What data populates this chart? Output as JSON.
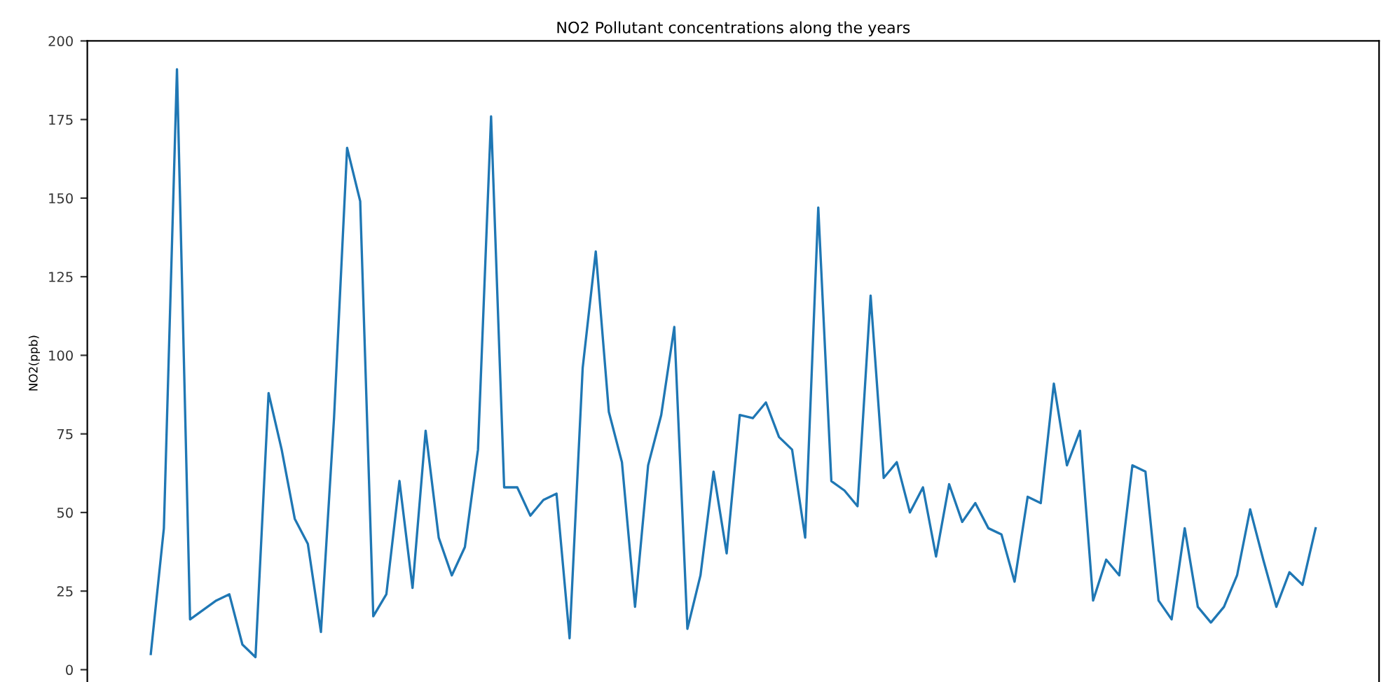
{
  "chart_data": {
    "type": "line",
    "title": "NO2 Pollutant concentrations along the years",
    "ylabel": "NO2(ppb)",
    "categories": [
      null,
      null,
      null,
      null,
      null,
      null,
      null,
      null,
      null,
      null,
      null,
      null,
      null,
      null,
      null,
      null,
      null,
      null,
      null,
      null,
      null,
      null,
      null,
      null,
      null,
      null,
      null,
      null,
      null,
      null,
      null,
      null,
      null,
      null,
      null,
      null,
      null,
      null,
      null,
      null,
      null,
      null,
      null,
      null,
      null,
      null,
      null,
      null,
      null,
      null,
      null,
      null,
      null,
      null,
      null,
      null,
      null,
      null,
      null,
      null,
      null,
      null,
      null,
      null,
      null,
      null,
      null,
      null,
      null,
      null,
      null,
      null,
      null,
      null,
      null,
      null,
      null,
      null,
      null,
      null,
      null,
      null,
      null,
      null,
      null,
      null,
      null,
      null,
      null,
      null
    ],
    "series": [
      {
        "color": "#1f77b4",
        "values": [
          5,
          45,
          191,
          16,
          19,
          22,
          24,
          8,
          4,
          88,
          70,
          48,
          40,
          12,
          80,
          166,
          149,
          17,
          24,
          60,
          26,
          76,
          42,
          30,
          39,
          70,
          176,
          58,
          58,
          49,
          54,
          56,
          10,
          96,
          133,
          82,
          66,
          20,
          65,
          81,
          109,
          13,
          30,
          63,
          37,
          81,
          80,
          85,
          74,
          70,
          42,
          147,
          60,
          57,
          52,
          119,
          61,
          66,
          50,
          58,
          36,
          59,
          47,
          53,
          45,
          43,
          28,
          55,
          53,
          91,
          65,
          76,
          22,
          35,
          30,
          65,
          63,
          22,
          16,
          45,
          20,
          15,
          20,
          30,
          51,
          35,
          20,
          31,
          27,
          45
        ]
      }
    ],
    "ylim": [
      -5,
      200
    ],
    "yticks": [
      0,
      25,
      50,
      75,
      100,
      125,
      150,
      175,
      200
    ],
    "tick_labels": "y",
    "line_style": "solid",
    "marker": "none"
  }
}
